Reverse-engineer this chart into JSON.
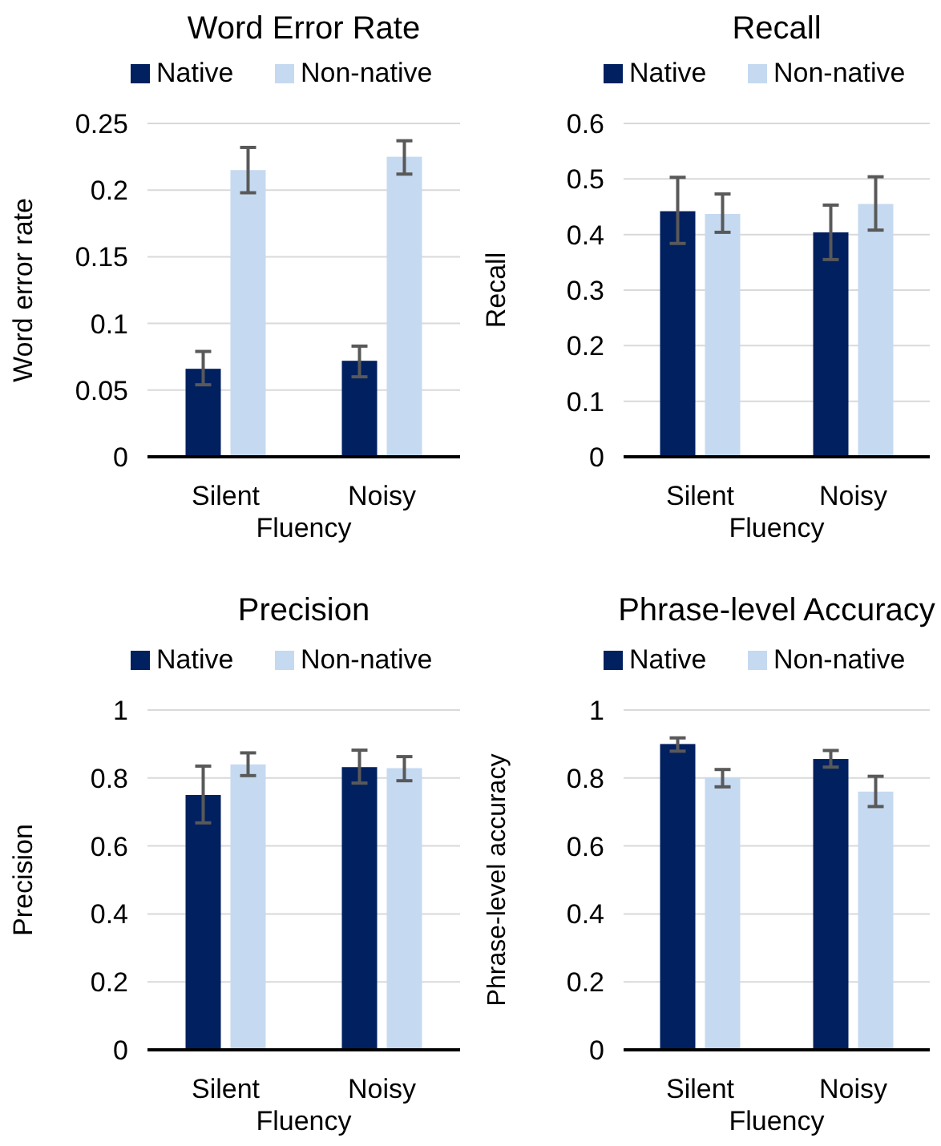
{
  "chart_data": [
    {
      "type": "bar",
      "title": "Word Error Rate",
      "xlabel": "Fluency",
      "ylabel": "Word error rate",
      "categories": [
        "Silent",
        "Noisy"
      ],
      "ylim": [
        0,
        0.25
      ],
      "yticks": [
        0,
        0.05,
        0.1,
        0.15,
        0.2,
        0.25
      ],
      "grid": "y",
      "legend": "top",
      "series": [
        {
          "name": "Native",
          "color": "#002060",
          "values": [
            0.066,
            0.072
          ],
          "errors": [
            [
              0.054,
              0.079
            ],
            [
              0.06,
              0.083
            ]
          ]
        },
        {
          "name": "Non-native",
          "color": "#c5d9f1",
          "values": [
            0.215,
            0.225
          ],
          "errors": [
            [
              0.198,
              0.232
            ],
            [
              0.212,
              0.237
            ]
          ]
        }
      ]
    },
    {
      "type": "bar",
      "title": "Recall",
      "xlabel": "Fluency",
      "ylabel": "Recall",
      "categories": [
        "Silent",
        "Noisy"
      ],
      "ylim": [
        0,
        0.6
      ],
      "yticks": [
        0,
        0.1,
        0.2,
        0.3,
        0.4,
        0.5,
        0.6
      ],
      "grid": "y",
      "legend": "top",
      "series": [
        {
          "name": "Native",
          "color": "#002060",
          "values": [
            0.442,
            0.404
          ],
          "errors": [
            [
              0.384,
              0.503
            ],
            [
              0.355,
              0.453
            ]
          ]
        },
        {
          "name": "Non-native",
          "color": "#c5d9f1",
          "values": [
            0.437,
            0.455
          ],
          "errors": [
            [
              0.404,
              0.473
            ],
            [
              0.408,
              0.504
            ]
          ]
        }
      ]
    },
    {
      "type": "bar",
      "title": "Precision",
      "xlabel": "Fluency",
      "ylabel": "Precision",
      "categories": [
        "Silent",
        "Noisy"
      ],
      "ylim": [
        0,
        1
      ],
      "yticks": [
        0,
        0.2,
        0.4,
        0.6,
        0.8,
        1
      ],
      "grid": "y",
      "legend": "top",
      "series": [
        {
          "name": "Native",
          "color": "#002060",
          "values": [
            0.75,
            0.832
          ],
          "errors": [
            [
              0.668,
              0.835
            ],
            [
              0.785,
              0.882
            ]
          ]
        },
        {
          "name": "Non-native",
          "color": "#c5d9f1",
          "values": [
            0.84,
            0.829
          ],
          "errors": [
            [
              0.807,
              0.874
            ],
            [
              0.792,
              0.863
            ]
          ]
        }
      ]
    },
    {
      "type": "bar",
      "title": "Phrase-level Accuracy",
      "xlabel": "Fluency",
      "ylabel": "Phrase-level accuracy",
      "categories": [
        "Silent",
        "Noisy"
      ],
      "ylim": [
        0,
        1
      ],
      "yticks": [
        0,
        0.2,
        0.4,
        0.6,
        0.8,
        1
      ],
      "grid": "y",
      "legend": "top",
      "series": [
        {
          "name": "Native",
          "color": "#002060",
          "values": [
            0.9,
            0.856
          ],
          "errors": [
            [
              0.879,
              0.918
            ],
            [
              0.832,
              0.881
            ]
          ]
        },
        {
          "name": "Non-native",
          "color": "#c5d9f1",
          "values": [
            0.802,
            0.76
          ],
          "errors": [
            [
              0.774,
              0.825
            ],
            [
              0.716,
              0.805
            ]
          ]
        }
      ]
    }
  ]
}
